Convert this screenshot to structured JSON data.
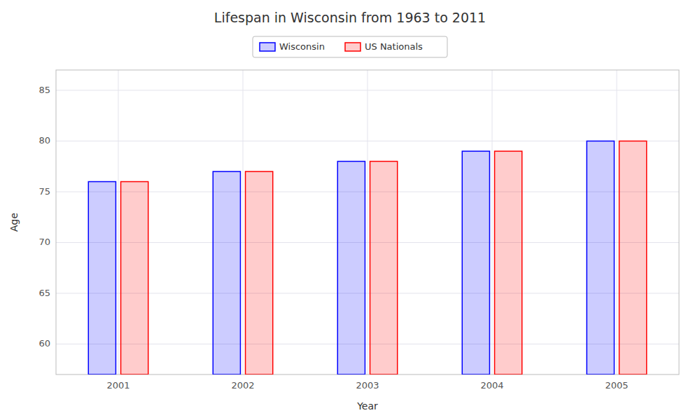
{
  "chart_data": {
    "type": "bar",
    "title": "Lifespan in Wisconsin from 1963 to 2011",
    "x_label": "Year",
    "y_label": "Age",
    "categories": [
      "2001",
      "2002",
      "2003",
      "2004",
      "2005"
    ],
    "series": [
      {
        "name": "Wisconsin",
        "color": "#0000ff",
        "values": [
          76.0,
          77.0,
          78.0,
          79.0,
          80.0
        ]
      },
      {
        "name": "US Nationals",
        "color": "#ff0000",
        "values": [
          76.0,
          77.0,
          78.0,
          79.0,
          80.0
        ]
      }
    ],
    "ylim": [
      57,
      87
    ],
    "yticks": [
      60,
      65,
      70,
      75,
      80,
      85
    ],
    "grid": true,
    "legend": "top"
  }
}
